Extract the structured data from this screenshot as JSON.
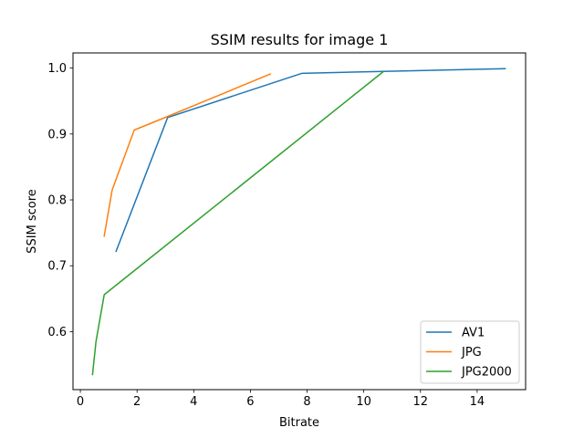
{
  "chart_data": {
    "type": "line",
    "title": "SSIM results for image 1",
    "xlabel": "Bitrate",
    "ylabel": "SSIM score",
    "xlim": [
      -0.26,
      15.71
    ],
    "ylim": [
      0.512,
      1.023
    ],
    "xticks": [
      0,
      2,
      4,
      6,
      8,
      10,
      12,
      14
    ],
    "yticks": [
      0.6,
      0.7,
      0.8,
      0.9,
      1.0
    ],
    "xtick_labels": [
      "0",
      "2",
      "4",
      "6",
      "8",
      "10",
      "12",
      "14"
    ],
    "ytick_labels": [
      "0.6",
      "0.7",
      "0.8",
      "0.9",
      "1.0"
    ],
    "grid": false,
    "legend_position": "lower-right",
    "series": [
      {
        "name": "AV1",
        "color": "#1f77b4",
        "points": [
          [
            1.26,
            0.722
          ],
          [
            3.08,
            0.925
          ],
          [
            7.81,
            0.992
          ],
          [
            10.7,
            0.995
          ],
          [
            14.99,
            0.999
          ]
        ]
      },
      {
        "name": "JPG",
        "color": "#ff7f0e",
        "points": [
          [
            0.84,
            0.745
          ],
          [
            1.12,
            0.815
          ],
          [
            1.9,
            0.906
          ],
          [
            3.05,
            0.926
          ],
          [
            6.7,
            0.991
          ]
        ]
      },
      {
        "name": "JPG2000",
        "color": "#2ca02c",
        "points": [
          [
            0.43,
            0.535
          ],
          [
            0.55,
            0.585
          ],
          [
            0.84,
            0.656
          ],
          [
            10.7,
            0.995
          ]
        ]
      }
    ]
  }
}
